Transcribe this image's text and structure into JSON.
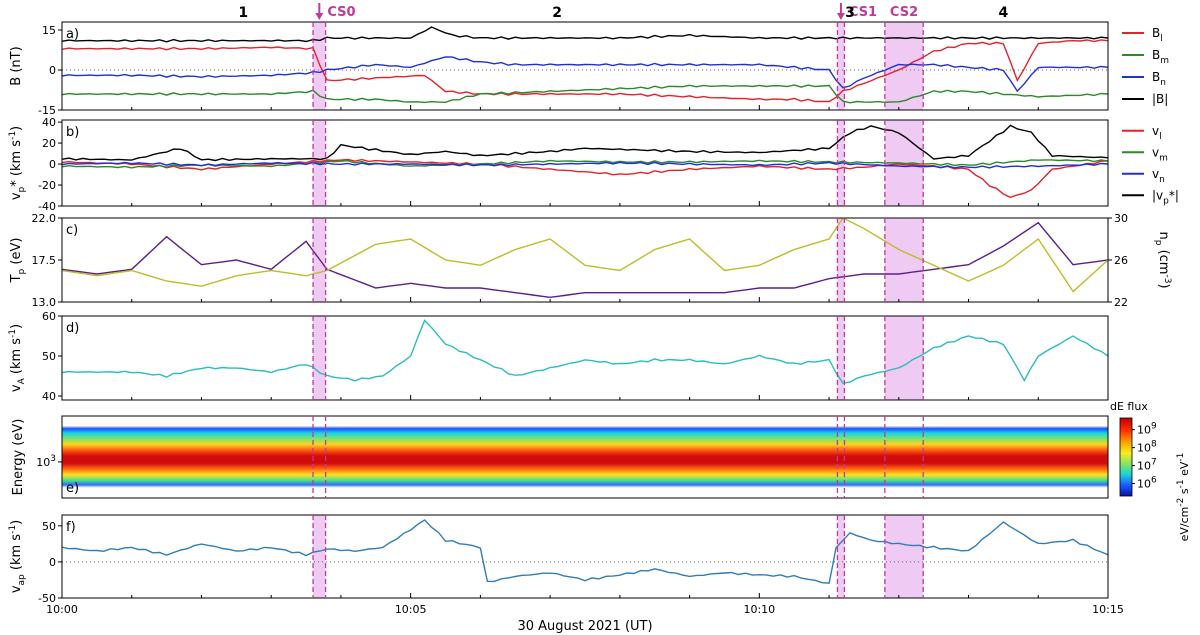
{
  "figure": {
    "xlabel": "30 August 2021 (UT)",
    "x_ticks": [
      "10:00",
      "10:05",
      "10:10",
      "10:15"
    ],
    "x_range_minutes": [
      0,
      15
    ],
    "regions": [
      {
        "label": "1",
        "at_min": 2.6
      },
      {
        "label": "2",
        "at_min": 7.1
      },
      {
        "label": "3",
        "at_min": 11.3
      },
      {
        "label": "4",
        "at_min": 13.5
      }
    ],
    "current_sheets": [
      {
        "label": "CS0",
        "from_min": 3.6,
        "to_min": 3.78,
        "arrow": true
      },
      {
        "label": "CS1",
        "from_min": 11.12,
        "to_min": 11.22,
        "arrow": true
      },
      {
        "label": "CS2",
        "from_min": 11.8,
        "to_min": 12.35,
        "arrow": false
      }
    ],
    "highlight_color": "#e9b8ee",
    "marker_color": "#c0399c"
  },
  "chart_data": [
    {
      "type": "line",
      "panel": "a)",
      "ylabel": "B (nT)",
      "ylim": [
        -15,
        18
      ],
      "y_ticks": [
        -15,
        0,
        15
      ],
      "zero_line": true,
      "series": [
        {
          "name": "B_l",
          "color": "#e8202a",
          "x": [
            0,
            1,
            2,
            3,
            3.6,
            3.8,
            4.5,
            5.2,
            5.5,
            6,
            6.5,
            7,
            8,
            9,
            10,
            10.5,
            11,
            11.2,
            11.5,
            12,
            12.5,
            13,
            13.5,
            13.7,
            14,
            14.5,
            15
          ],
          "y": [
            8,
            8,
            8,
            8.5,
            8,
            -4,
            -3,
            -2,
            -8,
            -9,
            -9,
            -9,
            -9,
            -10,
            -11,
            -11,
            -12,
            -8,
            -5,
            0,
            7,
            10,
            10,
            -4,
            10,
            11,
            11
          ]
        },
        {
          "name": "B_m",
          "color": "#2a8a2a",
          "x": [
            0,
            1,
            2,
            3,
            3.6,
            3.8,
            4.5,
            5,
            5.5,
            6,
            7,
            8,
            9,
            10,
            11,
            11.2,
            12,
            12.5,
            13,
            13.5,
            14,
            15
          ],
          "y": [
            -9,
            -9,
            -9,
            -9,
            -8,
            -11,
            -11,
            -12,
            -12,
            -9,
            -8,
            -7,
            -6,
            -6,
            -6,
            -12,
            -12,
            -8,
            -8,
            -9,
            -10,
            -9
          ]
        },
        {
          "name": "B_n",
          "color": "#1f2fd6",
          "x": [
            0,
            1,
            2,
            3,
            3.6,
            3.8,
            4.5,
            5,
            5.5,
            6,
            6.5,
            7,
            8,
            9,
            10,
            10.5,
            11,
            11.2,
            11.5,
            12,
            12.5,
            13,
            13.5,
            13.7,
            14,
            14.5,
            15
          ],
          "y": [
            -2,
            -2,
            -2.5,
            -2,
            -1,
            0,
            2,
            1,
            5,
            3,
            2,
            2,
            2,
            2,
            2,
            1,
            0,
            -7,
            -3,
            2,
            2,
            1,
            0,
            -8,
            1,
            1,
            1
          ]
        },
        {
          "name": "|B|",
          "color": "#000000",
          "x": [
            0,
            1,
            2,
            3,
            3.6,
            3.8,
            4.5,
            5,
            5.3,
            5.6,
            6,
            7,
            8,
            9,
            10,
            11,
            12,
            13,
            14,
            15
          ],
          "y": [
            11,
            11,
            11,
            11,
            11,
            12,
            12,
            12,
            16,
            13,
            12,
            12,
            12,
            13,
            12,
            12,
            12,
            12,
            12,
            12
          ]
        }
      ]
    },
    {
      "type": "line",
      "panel": "b)",
      "ylabel": "v_p* (km s^-1)",
      "ylim": [
        -40,
        42
      ],
      "y_ticks": [
        -40,
        -20,
        0,
        20,
        40
      ],
      "series": [
        {
          "name": "v_l",
          "color": "#e8202a",
          "x": [
            0,
            1,
            2,
            3,
            4,
            5,
            6,
            7,
            8,
            9,
            10,
            11,
            11.5,
            12,
            12.5,
            13,
            13.3,
            13.6,
            13.9,
            14.2,
            15
          ],
          "y": [
            2,
            0,
            -5,
            0,
            4,
            2,
            0,
            -5,
            -10,
            -5,
            -2,
            -5,
            -3,
            0,
            -2,
            -5,
            -20,
            -32,
            -25,
            -5,
            3
          ]
        },
        {
          "name": "v_m",
          "color": "#2a8a2a",
          "x": [
            0,
            1,
            2,
            3,
            4,
            5,
            6,
            7,
            8,
            9,
            10,
            11,
            12,
            13,
            14,
            15
          ],
          "y": [
            -2,
            -3,
            -1,
            -2,
            3,
            -2,
            0,
            3,
            2,
            2,
            3,
            2,
            1,
            -1,
            4,
            3
          ]
        },
        {
          "name": "v_n",
          "color": "#1f2fd6",
          "x": [
            0,
            1,
            2,
            3,
            4,
            5,
            6,
            7,
            8,
            9,
            10,
            11,
            12,
            13,
            14,
            15
          ],
          "y": [
            0,
            1,
            -1,
            1,
            0,
            0,
            -1,
            0,
            1,
            0,
            -1,
            1,
            -2,
            -3,
            -2,
            0
          ]
        },
        {
          "name": "|v_p*|",
          "color": "#000000",
          "x": [
            0,
            1,
            1.7,
            2,
            3,
            3.8,
            4,
            5,
            5.5,
            6,
            7,
            7.5,
            8,
            9,
            10,
            11,
            11.3,
            11.6,
            12,
            12.2,
            12.5,
            13,
            13.3,
            13.6,
            13.9,
            14.2,
            15
          ],
          "y": [
            5,
            4,
            15,
            4,
            5,
            5,
            18,
            9,
            12,
            8,
            12,
            15,
            14,
            12,
            11,
            15,
            30,
            36,
            30,
            20,
            5,
            8,
            22,
            36,
            30,
            8,
            6
          ]
        }
      ]
    },
    {
      "type": "line",
      "panel": "c)",
      "ylabel_left": "T_p (eV)",
      "ylabel_right": "n_p (cm^-3)",
      "ylim_left": [
        13,
        22
      ],
      "ylim_right": [
        22,
        30
      ],
      "y_ticks_left": [
        "13.0",
        "17.5",
        "22.0"
      ],
      "y_ticks_right": [
        22,
        26,
        30
      ],
      "series": [
        {
          "name": "T_p",
          "axis": "left",
          "color": "#5b1f8c",
          "x": [
            0,
            0.5,
            1,
            1.5,
            2,
            2.5,
            3,
            3.5,
            3.8,
            4.5,
            5,
            5.5,
            6,
            6.5,
            7,
            7.5,
            8,
            8.5,
            9,
            9.5,
            10,
            10.5,
            11,
            11.5,
            12,
            12.5,
            13,
            13.5,
            14,
            14.5,
            15
          ],
          "y": [
            16.5,
            16,
            16.5,
            20,
            17,
            17.5,
            16.5,
            19.5,
            16.5,
            14.5,
            15,
            14.5,
            14.5,
            14,
            13.5,
            14,
            14,
            14,
            14,
            14,
            14.5,
            14.5,
            15.5,
            16,
            16,
            16.5,
            17,
            19,
            21.5,
            17,
            17.5
          ]
        },
        {
          "name": "n_p",
          "axis": "right",
          "color": "#bdbd2a",
          "x": [
            0,
            0.5,
            1,
            1.5,
            2,
            2.5,
            3,
            3.5,
            3.8,
            4.5,
            5,
            5.5,
            6,
            6.5,
            7,
            7.5,
            8,
            8.5,
            9,
            9.5,
            10,
            10.5,
            11,
            11.2,
            11.5,
            12,
            12.5,
            13,
            13.5,
            14,
            14.5,
            15
          ],
          "y": [
            25,
            24.5,
            25,
            24,
            23.5,
            24.5,
            25,
            24.5,
            25,
            27.5,
            28,
            26,
            25.5,
            27,
            28,
            25.5,
            25,
            27,
            28,
            25,
            25.5,
            27,
            28,
            30,
            29,
            27,
            25.5,
            24,
            25.5,
            28,
            23,
            26
          ]
        }
      ]
    },
    {
      "type": "line",
      "panel": "d)",
      "ylabel": "v_A (km s^-1)",
      "ylim": [
        39,
        60
      ],
      "y_ticks": [
        40,
        50,
        60
      ],
      "series": [
        {
          "name": "v_A",
          "color": "#2bbcbf",
          "x": [
            0,
            0.5,
            1,
            1.5,
            2,
            2.5,
            3,
            3.5,
            3.8,
            4.2,
            4.6,
            5,
            5.2,
            5.5,
            6,
            6.5,
            7,
            7.5,
            8,
            8.5,
            9,
            9.5,
            10,
            10.5,
            11,
            11.2,
            11.5,
            12,
            12.5,
            13,
            13.5,
            13.8,
            14,
            14.5,
            15
          ],
          "y": [
            46,
            46,
            46,
            45,
            47,
            47,
            46,
            48,
            45,
            44,
            45,
            50,
            59,
            53,
            49,
            45,
            47,
            49,
            48,
            49,
            49,
            48,
            50,
            48,
            49,
            43,
            45,
            47,
            52,
            55,
            53,
            44,
            50,
            55,
            50
          ]
        }
      ]
    },
    {
      "type": "heatmap",
      "panel": "e)",
      "ylabel": "Energy (eV)",
      "y_tick": "10^3",
      "colorbar_title": "dE flux",
      "colorbar_label": "eV/cm^-2 s^-1 eV^-1",
      "colorbar_ticks": [
        "10^9",
        "10^8",
        "10^7",
        "10^6"
      ]
    },
    {
      "type": "line",
      "panel": "f)",
      "ylabel": "v_ap (km s^-1)",
      "ylim": [
        -50,
        65
      ],
      "y_ticks": [
        -50,
        0,
        50
      ],
      "zero_line": true,
      "series": [
        {
          "name": "v_ap",
          "color": "#2f7db8",
          "x": [
            0,
            0.5,
            1,
            1.5,
            2,
            2.5,
            3,
            3.5,
            3.8,
            4.2,
            4.6,
            5,
            5.2,
            5.5,
            6,
            6.1,
            6.5,
            7,
            7.5,
            8,
            8.5,
            9,
            9.5,
            10,
            10.5,
            11,
            11.1,
            11.3,
            11.6,
            12,
            12.5,
            13,
            13.5,
            14,
            14.5,
            15
          ],
          "y": [
            20,
            15,
            20,
            10,
            25,
            15,
            20,
            10,
            18,
            15,
            20,
            45,
            58,
            30,
            20,
            -28,
            -20,
            -15,
            -25,
            -18,
            -10,
            -20,
            -15,
            -18,
            -20,
            -30,
            20,
            40,
            30,
            25,
            20,
            15,
            55,
            25,
            30,
            10
          ]
        }
      ]
    }
  ]
}
